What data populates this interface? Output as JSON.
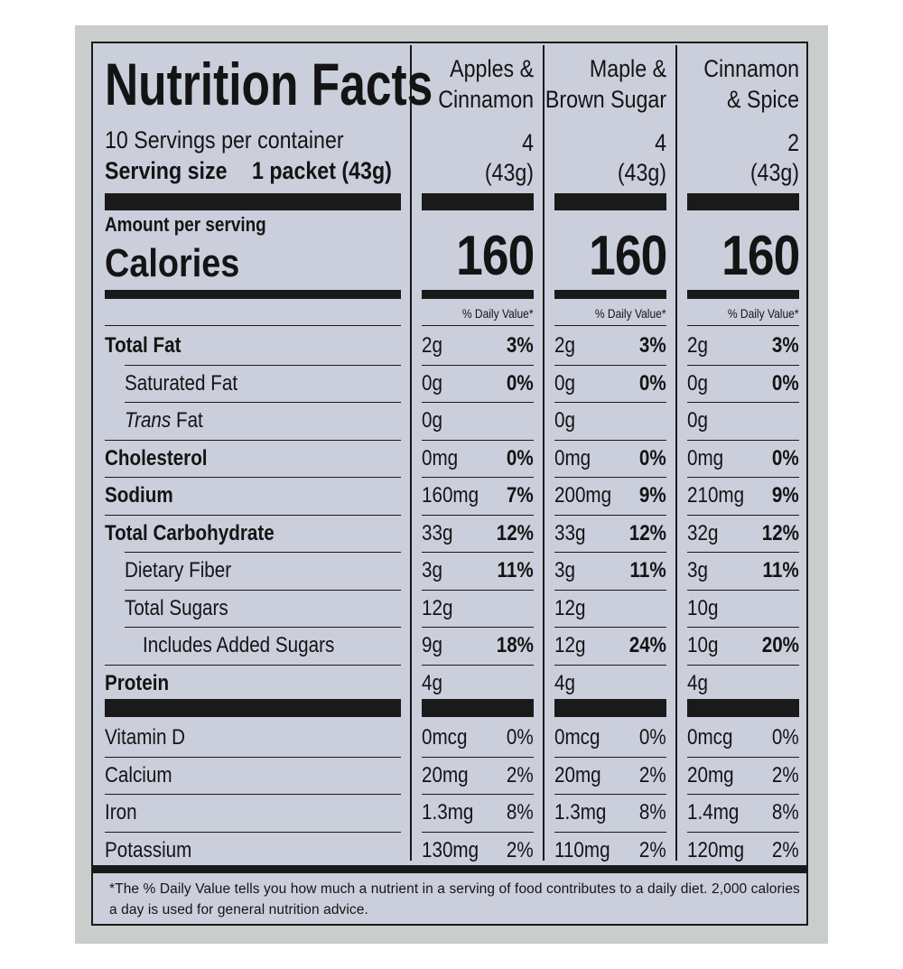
{
  "title": "Nutrition Facts",
  "servings_per_container": "10 Servings per container",
  "serving_size_label": "Serving size",
  "serving_size_value": "1 packet (43g)",
  "amount_per_serving": "Amount per serving",
  "calories_label": "Calories",
  "daily_value_header": "% Daily Value*",
  "columns": [
    {
      "name_line1": "Apples &",
      "name_line2": "Cinnamon",
      "servings": "4",
      "serving_grams": "(43g)",
      "calories": "160"
    },
    {
      "name_line1": "Maple &",
      "name_line2": "Brown Sugar",
      "servings": "4",
      "serving_grams": "(43g)",
      "calories": "160"
    },
    {
      "name_line1": "Cinnamon",
      "name_line2": "& Spice",
      "servings": "2",
      "serving_grams": "(43g)",
      "calories": "160"
    }
  ],
  "nutrients": [
    {
      "label": "Total Fat",
      "values": [
        [
          "2g",
          "3%"
        ],
        [
          "2g",
          "3%"
        ],
        [
          "2g",
          "3%"
        ]
      ]
    },
    {
      "label": "Saturated Fat",
      "values": [
        [
          "0g",
          "0%"
        ],
        [
          "0g",
          "0%"
        ],
        [
          "0g",
          "0%"
        ]
      ]
    },
    {
      "label_italic": "Trans",
      "label": " Fat",
      "values": [
        [
          "0g",
          ""
        ],
        [
          "0g",
          ""
        ],
        [
          "0g",
          ""
        ]
      ]
    },
    {
      "label": "Cholesterol",
      "values": [
        [
          "0mg",
          "0%"
        ],
        [
          "0mg",
          "0%"
        ],
        [
          "0mg",
          "0%"
        ]
      ]
    },
    {
      "label": "Sodium",
      "values": [
        [
          "160mg",
          "7%"
        ],
        [
          "200mg",
          "9%"
        ],
        [
          "210mg",
          "9%"
        ]
      ]
    },
    {
      "label": "Total Carbohydrate",
      "values": [
        [
          "33g",
          "12%"
        ],
        [
          "33g",
          "12%"
        ],
        [
          "32g",
          "12%"
        ]
      ]
    },
    {
      "label": "Dietary Fiber",
      "values": [
        [
          "3g",
          "11%"
        ],
        [
          "3g",
          "11%"
        ],
        [
          "3g",
          "11%"
        ]
      ]
    },
    {
      "label": "Total Sugars",
      "values": [
        [
          "12g",
          ""
        ],
        [
          "12g",
          ""
        ],
        [
          "10g",
          ""
        ]
      ]
    },
    {
      "label": "Includes Added Sugars",
      "values": [
        [
          "9g",
          "18%"
        ],
        [
          "12g",
          "24%"
        ],
        [
          "10g",
          "20%"
        ]
      ]
    },
    {
      "label": "Protein",
      "values": [
        [
          "4g",
          ""
        ],
        [
          "4g",
          ""
        ],
        [
          "4g",
          ""
        ]
      ]
    }
  ],
  "vitamins": [
    {
      "label": "Vitamin D",
      "values": [
        [
          "0mcg",
          "0%"
        ],
        [
          "0mcg",
          "0%"
        ],
        [
          "0mcg",
          "0%"
        ]
      ]
    },
    {
      "label": "Calcium",
      "values": [
        [
          "20mg",
          "2%"
        ],
        [
          "20mg",
          "2%"
        ],
        [
          "20mg",
          "2%"
        ]
      ]
    },
    {
      "label": "Iron",
      "values": [
        [
          "1.3mg",
          "8%"
        ],
        [
          "1.3mg",
          "8%"
        ],
        [
          "1.4mg",
          "8%"
        ]
      ]
    },
    {
      "label": "Potassium",
      "values": [
        [
          "130mg",
          "2%"
        ],
        [
          "110mg",
          "2%"
        ],
        [
          "120mg",
          "2%"
        ]
      ]
    }
  ],
  "footnote_line1": "*The % Daily Value tells you how much a nutrient in a serving of food contributes to a daily diet. 2,000 calories",
  "footnote_line2": "a day is used for general nutrition advice."
}
